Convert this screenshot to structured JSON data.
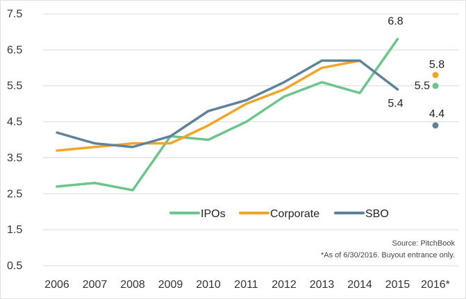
{
  "chart_data": {
    "type": "line",
    "categories": [
      "2006",
      "2007",
      "2008",
      "2009",
      "2010",
      "2011",
      "2012",
      "2013",
      "2014",
      "2015",
      "2016*"
    ],
    "ylim": [
      0.5,
      7.5
    ],
    "yticks": [
      "0.5",
      "1.5",
      "2.5",
      "3.5",
      "4.5",
      "5.5",
      "6.5",
      "7.5"
    ],
    "grid": "horizontal",
    "legend_position": "lower-right",
    "series": [
      {
        "name": "IPOs",
        "color": "#6cc58a",
        "values": [
          2.7,
          2.8,
          2.6,
          4.1,
          4.0,
          4.5,
          5.2,
          5.6,
          5.3,
          6.8,
          5.5
        ]
      },
      {
        "name": "Corporate",
        "color": "#f2a524",
        "values": [
          3.7,
          3.8,
          3.9,
          3.9,
          4.4,
          5.0,
          5.4,
          6.0,
          6.2,
          null,
          5.8
        ]
      },
      {
        "name": "SBO",
        "color": "#5e8299",
        "values": [
          4.2,
          3.9,
          3.8,
          4.1,
          4.8,
          5.1,
          5.6,
          6.2,
          6.2,
          5.4,
          4.4
        ]
      }
    ],
    "data_labels": [
      {
        "series": "IPOs",
        "category": "2015",
        "text": "6.8"
      },
      {
        "series": "SBO",
        "category": "2015",
        "text": "5.4"
      },
      {
        "series": "Corporate",
        "category": "2016*",
        "text": "5.8"
      },
      {
        "series": "IPOs",
        "category": "2016*",
        "text": "5.5"
      },
      {
        "series": "SBO",
        "category": "2016*",
        "text": "4.4"
      }
    ],
    "source": "Source: PitchBook",
    "footnote": "*As of 6/30/2016. Buyout entrance only."
  }
}
